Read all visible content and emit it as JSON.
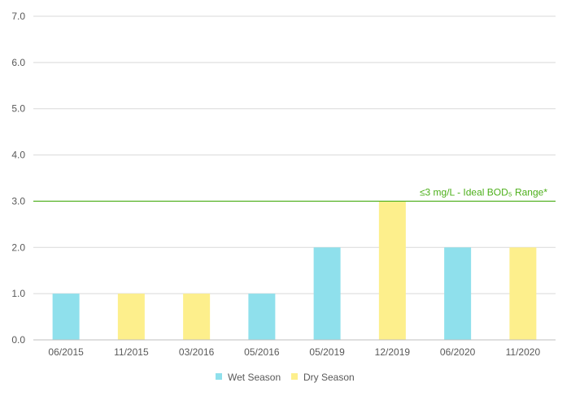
{
  "chart_data": {
    "type": "bar",
    "categories": [
      "06/2015",
      "11/2015",
      "03/2016",
      "05/2016",
      "05/2019",
      "12/2019",
      "06/2020",
      "11/2020"
    ],
    "values": [
      1.0,
      1.0,
      1.0,
      1.0,
      2.0,
      3.0,
      2.0,
      2.0
    ],
    "season": [
      "wet",
      "dry",
      "dry",
      "wet",
      "wet",
      "dry",
      "wet",
      "dry"
    ],
    "series": [
      {
        "name": "Wet Season",
        "key": "wet",
        "color": "#8fe0ec"
      },
      {
        "name": "Dry Season",
        "key": "dry",
        "color": "#fdef8c"
      }
    ],
    "ylim": [
      0,
      7.0
    ],
    "yticks": [
      "0.0",
      "1.0",
      "2.0",
      "3.0",
      "4.0",
      "5.0",
      "6.0",
      "7.0"
    ],
    "grid": true,
    "legend_position": "bottom",
    "reference_line": {
      "value": 3.0,
      "label": "≤3 mg/L - Ideal BOD₅ Range*",
      "color": "#4caf1a"
    },
    "title": "",
    "xlabel": "",
    "ylabel": ""
  }
}
